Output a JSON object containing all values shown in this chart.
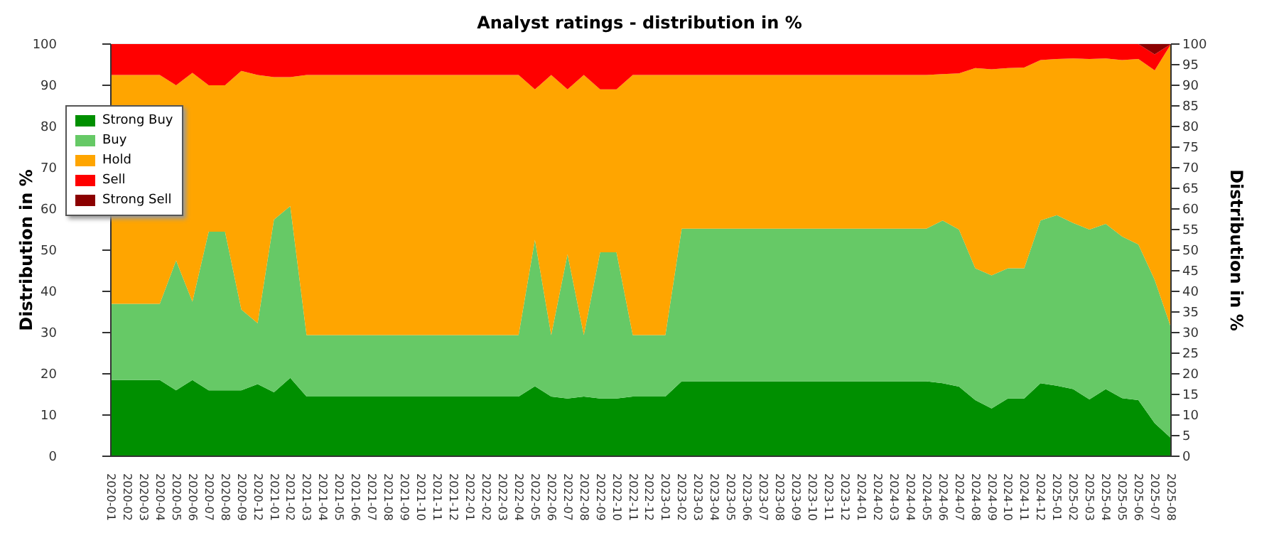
{
  "chart_data": {
    "type": "area",
    "stacked": true,
    "title": "Analyst ratings - distribution in %",
    "ylabel": "Distribution in %",
    "y2label": "Distribution in %",
    "categories": [
      "2020-01",
      "2020-02",
      "2020-03",
      "2020-04",
      "2020-05",
      "2020-06",
      "2020-07",
      "2020-08",
      "2020-09",
      "2020-12",
      "2021-01",
      "2021-02",
      "2021-03",
      "2021-04",
      "2021-05",
      "2021-06",
      "2021-07",
      "2021-08",
      "2021-09",
      "2021-10",
      "2021-11",
      "2021-12",
      "2022-01",
      "2022-02",
      "2022-03",
      "2022-04",
      "2022-05",
      "2022-06",
      "2022-07",
      "2022-08",
      "2022-09",
      "2022-10",
      "2022-11",
      "2022-12",
      "2023-01",
      "2023-02",
      "2023-03",
      "2023-04",
      "2023-05",
      "2023-06",
      "2023-07",
      "2023-08",
      "2023-09",
      "2023-10",
      "2023-11",
      "2023-12",
      "2024-01",
      "2024-02",
      "2024-03",
      "2024-04",
      "2024-05",
      "2024-06",
      "2024-07",
      "2024-08",
      "2024-09",
      "2024-10",
      "2024-11",
      "2024-12",
      "2025-01",
      "2025-02",
      "2025-03",
      "2025-04",
      "2025-05",
      "2025-06",
      "2025-07",
      "2025-08"
    ],
    "series": [
      {
        "name": "Strong Buy",
        "color": "#008f00",
        "values": [
          18.5,
          18.5,
          18.5,
          18.5,
          16,
          18.5,
          16,
          16,
          16,
          17.5,
          15.5,
          19,
          14.5,
          14.5,
          14.5,
          14.5,
          14.5,
          14.5,
          14.5,
          14.5,
          14.5,
          14.5,
          14.5,
          14.5,
          14.5,
          14.5,
          17,
          14.5,
          14,
          14.5,
          14,
          14,
          14.5,
          14.5,
          14.5,
          18.2,
          18.2,
          18.2,
          18.2,
          18.2,
          18.2,
          18.2,
          18.2,
          18.2,
          18.2,
          18.2,
          18.2,
          18.2,
          18.2,
          18.2,
          18.2,
          17.7,
          16.9,
          13.6,
          11.6,
          14,
          14,
          17.7,
          17.1,
          16.3,
          13.8,
          16.3,
          14.1,
          13.6,
          8,
          4.4
        ]
      },
      {
        "name": "Buy",
        "color": "#66c966",
        "values": [
          18.5,
          18.5,
          18.5,
          18.5,
          31.5,
          19,
          38.5,
          38.5,
          19.6,
          14.8,
          41.9,
          41.7,
          14.9,
          14.9,
          14.9,
          14.9,
          14.9,
          14.9,
          14.9,
          14.9,
          14.9,
          14.9,
          14.9,
          14.9,
          14.9,
          14.9,
          35.5,
          14.9,
          35,
          14.9,
          35.5,
          35.5,
          14.9,
          14.9,
          14.9,
          37,
          37,
          37,
          37,
          37,
          37,
          37,
          37,
          37,
          37,
          37,
          37,
          37,
          37,
          37,
          37,
          39.5,
          38.1,
          32,
          32.3,
          31.6,
          31.6,
          39.5,
          41.4,
          40.3,
          41.2,
          40.1,
          39.2,
          37.8,
          34.8,
          26.8
        ]
      },
      {
        "name": "Hold",
        "color": "#ffa500",
        "values": [
          55.5,
          55.5,
          55.5,
          55.5,
          42.5,
          55.5,
          35.5,
          35.5,
          57.9,
          60.2,
          34.6,
          31.3,
          63.1,
          63.1,
          63.1,
          63.1,
          63.1,
          63.1,
          63.1,
          63.1,
          63.1,
          63.1,
          63.1,
          63.1,
          63.1,
          63.1,
          36.5,
          63.1,
          40,
          63.1,
          39.5,
          39.5,
          63.1,
          63.1,
          63.1,
          37.3,
          37.3,
          37.3,
          37.3,
          37.3,
          37.3,
          37.3,
          37.3,
          37.3,
          37.3,
          37.3,
          37.3,
          37.3,
          37.3,
          37.3,
          37.3,
          35.5,
          37.9,
          48.6,
          50,
          48.6,
          48.7,
          38.9,
          37.9,
          39.9,
          41.4,
          40.1,
          42.8,
          45,
          50.8,
          68.8
        ]
      },
      {
        "name": "Sell",
        "color": "#ff0000",
        "values": [
          7.5,
          7.5,
          7.5,
          7.5,
          10,
          7,
          10,
          10,
          6.5,
          7.5,
          8,
          8,
          7.5,
          7.5,
          7.5,
          7.5,
          7.5,
          7.5,
          7.5,
          7.5,
          7.5,
          7.5,
          7.5,
          7.5,
          7.5,
          7.5,
          11,
          7.5,
          11,
          7.5,
          11,
          11,
          7.5,
          7.5,
          7.5,
          7.5,
          7.5,
          7.5,
          7.5,
          7.5,
          7.5,
          7.5,
          7.5,
          7.5,
          7.5,
          7.5,
          7.5,
          7.5,
          7.5,
          7.5,
          7.5,
          7.3,
          7.1,
          5.8,
          6.1,
          5.8,
          5.7,
          3.9,
          3.6,
          3.5,
          3.6,
          3.5,
          3.9,
          3.6,
          3.9,
          0
        ]
      },
      {
        "name": "Strong Sell",
        "color": "#8b0000",
        "values": [
          0,
          0,
          0,
          0,
          0,
          0,
          0,
          0,
          0,
          0,
          0,
          0,
          0,
          0,
          0,
          0,
          0,
          0,
          0,
          0,
          0,
          0,
          0,
          0,
          0,
          0,
          0,
          0,
          0,
          0,
          0,
          0,
          0,
          0,
          0,
          0,
          0,
          0,
          0,
          0,
          0,
          0,
          0,
          0,
          0,
          0,
          0,
          0,
          0,
          0,
          0,
          0,
          0,
          0,
          0,
          0,
          0,
          0,
          0,
          0,
          0,
          0,
          0,
          0,
          2.5,
          0
        ]
      }
    ],
    "ylim": [
      0,
      100
    ],
    "yticks": [
      0,
      10,
      20,
      30,
      40,
      50,
      60,
      70,
      80,
      90,
      100
    ],
    "y2lim": [
      0,
      100
    ],
    "y2ticks": [
      0,
      5,
      10,
      15,
      20,
      25,
      30,
      35,
      40,
      45,
      50,
      55,
      60,
      65,
      70,
      75,
      80,
      85,
      90,
      95,
      100
    ],
    "grid": "y",
    "legend": "top left"
  }
}
